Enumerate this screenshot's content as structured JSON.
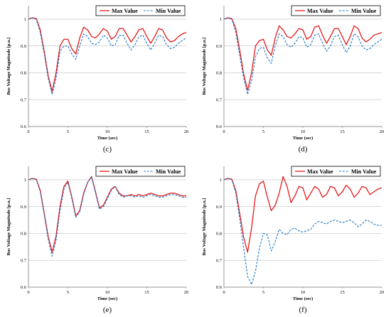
{
  "colors": {
    "max": "#e31a1c",
    "min": "#1f78c8",
    "axis": "#7f7f7f",
    "grid": "#bfbfbf"
  },
  "chart_data": [
    {
      "type": "line",
      "panel": "c",
      "caption": "(c)",
      "xlabel": "Time (sec)",
      "ylabel": "Bus Voltage Magnitude [p.u.]",
      "xlim": [
        0,
        20
      ],
      "ylim": [
        0.6,
        1.05
      ],
      "xticks": [
        "0",
        "5",
        "10",
        "15",
        "20"
      ],
      "yticks": [
        "0.6",
        "0.7",
        "0.8",
        "0.9",
        "1"
      ],
      "grid": true,
      "legend": "top-right",
      "x": [
        0,
        0.5,
        1,
        1.5,
        2,
        2.5,
        3,
        3.5,
        4,
        4.5,
        5,
        5.5,
        6,
        6.5,
        7,
        7.5,
        8,
        8.5,
        9,
        9.5,
        10,
        10.5,
        11,
        11.5,
        12,
        12.5,
        13,
        13.5,
        14,
        14.5,
        15,
        15.5,
        16,
        16.5,
        17,
        17.5,
        18,
        18.5,
        19,
        19.5,
        20
      ],
      "series": [
        {
          "name": "Max Value",
          "style": "solid",
          "values": [
            1.0,
            1.005,
            1.002,
            0.96,
            0.88,
            0.79,
            0.73,
            0.8,
            0.9,
            0.925,
            0.925,
            0.89,
            0.87,
            0.93,
            0.97,
            0.96,
            0.935,
            0.93,
            0.945,
            0.965,
            0.955,
            0.925,
            0.935,
            0.965,
            0.965,
            0.94,
            0.915,
            0.935,
            0.96,
            0.965,
            0.935,
            0.91,
            0.935,
            0.965,
            0.96,
            0.93,
            0.915,
            0.92,
            0.935,
            0.945,
            0.95
          ]
        },
        {
          "name": "Min Value",
          "style": "dashed",
          "values": [
            1.0,
            1.004,
            1.0,
            0.95,
            0.87,
            0.78,
            0.72,
            0.78,
            0.88,
            0.9,
            0.9,
            0.87,
            0.85,
            0.9,
            0.945,
            0.935,
            0.91,
            0.905,
            0.915,
            0.94,
            0.93,
            0.9,
            0.905,
            0.94,
            0.94,
            0.91,
            0.885,
            0.905,
            0.935,
            0.94,
            0.91,
            0.885,
            0.91,
            0.94,
            0.935,
            0.905,
            0.89,
            0.895,
            0.91,
            0.92,
            0.93
          ]
        }
      ]
    },
    {
      "type": "line",
      "panel": "d",
      "caption": "(d)",
      "xlabel": "Time (sec)",
      "ylabel": "Bus Voltage Magnitude [p.u.]",
      "xlim": [
        0,
        20
      ],
      "ylim": [
        0.6,
        1.05
      ],
      "xticks": [
        "0",
        "5",
        "10",
        "15",
        "20"
      ],
      "yticks": [
        "0.6",
        "0.7",
        "0.8",
        "0.9",
        "1"
      ],
      "grid": true,
      "legend": "top-right",
      "x": [
        0,
        0.5,
        1,
        1.5,
        2,
        2.5,
        3,
        3.5,
        4,
        4.5,
        5,
        5.5,
        6,
        6.5,
        7,
        7.5,
        8,
        8.5,
        9,
        9.5,
        10,
        10.5,
        11,
        11.5,
        12,
        12.5,
        13,
        13.5,
        14,
        14.5,
        15,
        15.5,
        16,
        16.5,
        17,
        17.5,
        18,
        18.5,
        19,
        19.5,
        20
      ],
      "series": [
        {
          "name": "Max Value",
          "style": "solid",
          "values": [
            1.0,
            1.005,
            1.002,
            0.965,
            0.885,
            0.795,
            0.735,
            0.8,
            0.9,
            0.92,
            0.925,
            0.885,
            0.865,
            0.93,
            0.975,
            0.96,
            0.935,
            0.93,
            0.945,
            0.965,
            0.96,
            0.925,
            0.935,
            0.97,
            0.975,
            0.94,
            0.91,
            0.935,
            0.965,
            0.965,
            0.935,
            0.905,
            0.935,
            0.975,
            0.965,
            0.93,
            0.915,
            0.925,
            0.94,
            0.945,
            0.95
          ]
        },
        {
          "name": "Min Value",
          "style": "dashed",
          "values": [
            1.0,
            1.004,
            1.0,
            0.95,
            0.865,
            0.78,
            0.72,
            0.77,
            0.86,
            0.89,
            0.895,
            0.855,
            0.835,
            0.9,
            0.945,
            0.935,
            0.905,
            0.895,
            0.91,
            0.935,
            0.93,
            0.895,
            0.905,
            0.94,
            0.945,
            0.91,
            0.88,
            0.9,
            0.935,
            0.94,
            0.905,
            0.875,
            0.9,
            0.945,
            0.935,
            0.9,
            0.885,
            0.89,
            0.905,
            0.915,
            0.925
          ]
        }
      ]
    },
    {
      "type": "line",
      "panel": "e",
      "caption": "(e)",
      "xlabel": "Time (sec)",
      "ylabel": "Bus Voltage Magnitude [p.u.]",
      "xlim": [
        0,
        20
      ],
      "ylim": [
        0.6,
        1.05
      ],
      "xticks": [
        "0",
        "5",
        "10",
        "15",
        "20"
      ],
      "yticks": [
        "0.6",
        "0.7",
        "0.8",
        "0.9",
        "1"
      ],
      "grid": true,
      "legend": "top-right",
      "x": [
        0,
        0.5,
        1,
        1.5,
        2,
        2.5,
        3,
        3.5,
        4,
        4.5,
        5,
        5.5,
        6,
        6.5,
        7,
        7.5,
        8,
        8.5,
        9,
        9.5,
        10,
        10.5,
        11,
        11.5,
        12,
        12.5,
        13,
        13.5,
        14,
        14.5,
        15,
        15.5,
        16,
        16.5,
        17,
        17.5,
        18,
        18.5,
        19,
        19.5,
        20
      ],
      "series": [
        {
          "name": "Max Value",
          "style": "solid",
          "values": [
            1.0,
            1.005,
            1.002,
            0.96,
            0.875,
            0.79,
            0.73,
            0.79,
            0.9,
            0.975,
            0.995,
            0.935,
            0.865,
            0.885,
            0.95,
            0.99,
            1.012,
            0.955,
            0.895,
            0.905,
            0.935,
            0.965,
            0.975,
            0.95,
            0.94,
            0.94,
            0.945,
            0.94,
            0.945,
            0.94,
            0.945,
            0.95,
            0.945,
            0.94,
            0.94,
            0.945,
            0.95,
            0.95,
            0.945,
            0.94,
            0.94
          ]
        },
        {
          "name": "Min Value",
          "style": "dashed",
          "values": [
            1.0,
            1.004,
            1.0,
            0.955,
            0.87,
            0.78,
            0.715,
            0.775,
            0.885,
            0.965,
            0.99,
            0.93,
            0.86,
            0.88,
            0.945,
            0.99,
            1.01,
            0.95,
            0.89,
            0.9,
            0.93,
            0.96,
            0.975,
            0.945,
            0.935,
            0.94,
            0.94,
            0.935,
            0.94,
            0.935,
            0.94,
            0.945,
            0.94,
            0.935,
            0.935,
            0.94,
            0.945,
            0.945,
            0.94,
            0.935,
            0.935
          ]
        }
      ]
    },
    {
      "type": "line",
      "panel": "f",
      "caption": "(f)",
      "xlabel": "Time (sec)",
      "ylabel": "Bus Voltage Magnitude [p.u.]",
      "xlim": [
        0,
        20
      ],
      "ylim": [
        0.6,
        1.05
      ],
      "xticks": [
        "0",
        "5",
        "10",
        "15",
        "20"
      ],
      "yticks": [
        "0.6",
        "0.7",
        "0.8",
        "0.9",
        "1"
      ],
      "grid": true,
      "legend": "top-right",
      "x": [
        0,
        0.5,
        1,
        1.5,
        2,
        2.5,
        3,
        3.5,
        4,
        4.5,
        5,
        5.5,
        6,
        6.5,
        7,
        7.5,
        8,
        8.5,
        9,
        9.5,
        10,
        10.5,
        11,
        11.5,
        12,
        12.5,
        13,
        13.5,
        14,
        14.5,
        15,
        15.5,
        16,
        16.5,
        17,
        17.5,
        18,
        18.5,
        19,
        19.5,
        20
      ],
      "series": [
        {
          "name": "Max Value",
          "style": "solid",
          "values": [
            1.0,
            1.005,
            1.002,
            0.96,
            0.875,
            0.785,
            0.73,
            0.82,
            0.94,
            0.985,
            0.995,
            0.935,
            0.885,
            0.905,
            0.95,
            1.012,
            0.975,
            0.915,
            0.94,
            0.975,
            0.97,
            0.925,
            0.95,
            0.975,
            0.965,
            0.935,
            0.945,
            0.975,
            0.97,
            0.94,
            0.955,
            0.98,
            0.965,
            0.935,
            0.95,
            0.975,
            0.97,
            0.945,
            0.955,
            0.965,
            0.97
          ]
        },
        {
          "name": "Min Value",
          "style": "dashed",
          "values": [
            1.0,
            1.004,
            1.0,
            0.95,
            0.855,
            0.745,
            0.64,
            0.61,
            0.66,
            0.745,
            0.8,
            0.795,
            0.735,
            0.77,
            0.815,
            0.8,
            0.795,
            0.815,
            0.82,
            0.81,
            0.805,
            0.81,
            0.815,
            0.835,
            0.845,
            0.84,
            0.835,
            0.845,
            0.85,
            0.845,
            0.84,
            0.845,
            0.85,
            0.84,
            0.825,
            0.835,
            0.85,
            0.845,
            0.835,
            0.83,
            0.83
          ]
        }
      ]
    }
  ]
}
